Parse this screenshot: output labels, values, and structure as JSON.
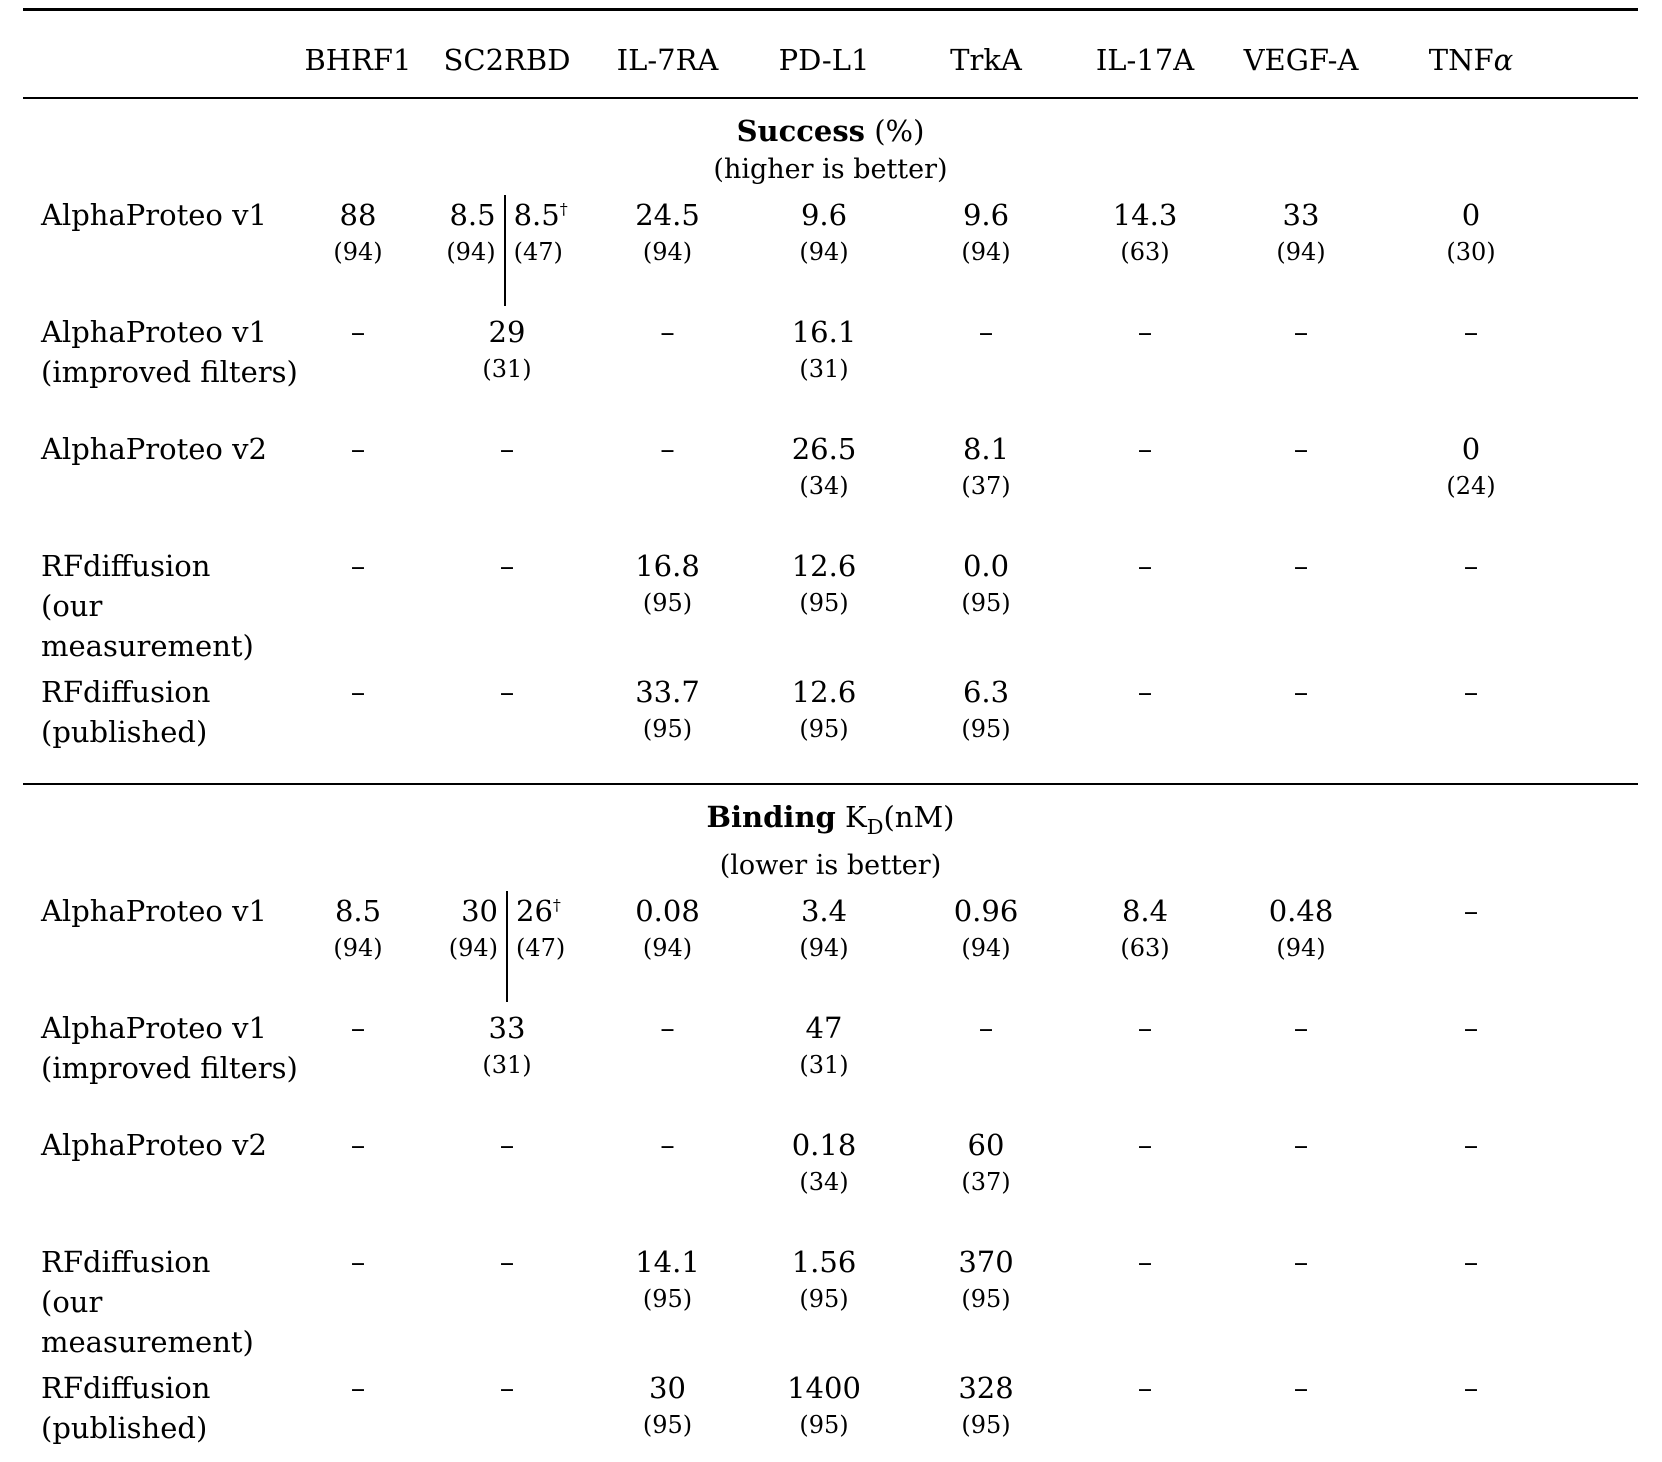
{
  "page": {
    "background": "#ffffff",
    "text_color": "#000000"
  },
  "table": {
    "columns": [
      "BHRF1",
      "SC2RBD",
      "IL-7RA",
      "PD-L1",
      "TrkA",
      "IL-17A",
      "VEGF-A",
      "TNFα"
    ],
    "sections": [
      {
        "id": "success",
        "title": [
          {
            "t": "Success",
            "b": true
          },
          {
            "t": " (%)"
          }
        ],
        "subtitle": "(higher is better)",
        "rows": [
          {
            "label": [
              "AlphaProteo v1"
            ],
            "cells": [
              {
                "v": "88",
                "n": "(94)"
              },
              {
                "split": [
                  {
                    "v": "8.5",
                    "n": "(94)"
                  },
                  {
                    "v": "8.5",
                    "sup": "†",
                    "n": "(47)"
                  }
                ]
              },
              {
                "v": "24.5",
                "n": "(94)"
              },
              {
                "v": "9.6",
                "n": "(94)"
              },
              {
                "v": "9.6",
                "n": "(94)"
              },
              {
                "v": "14.3",
                "n": "(63)"
              },
              {
                "v": "33",
                "n": "(94)"
              },
              {
                "v": "0",
                "n": "(30)"
              }
            ]
          },
          {
            "label": [
              "AlphaProteo v1",
              "(improved filters)"
            ],
            "cells": [
              {
                "v": "–"
              },
              {
                "v": "29",
                "n": "(31)"
              },
              {
                "v": "–"
              },
              {
                "v": "16.1",
                "n": "(31)"
              },
              {
                "v": "–"
              },
              {
                "v": "–"
              },
              {
                "v": "–"
              },
              {
                "v": "–"
              }
            ]
          },
          {
            "label": [
              "AlphaProteo v2"
            ],
            "cells": [
              {
                "v": "–"
              },
              {
                "v": "–"
              },
              {
                "v": "–"
              },
              {
                "v": "26.5",
                "n": "(34)"
              },
              {
                "v": "8.1",
                "n": "(37)"
              },
              {
                "v": "–"
              },
              {
                "v": "–"
              },
              {
                "v": "0",
                "n": "(24)"
              }
            ]
          },
          {
            "label": [
              "RFdiffusion",
              "(our measurement)"
            ],
            "cells": [
              {
                "v": "–"
              },
              {
                "v": "–"
              },
              {
                "v": "16.8",
                "n": "(95)"
              },
              {
                "v": "12.6",
                "n": "(95)"
              },
              {
                "v": "0.0",
                "n": "(95)"
              },
              {
                "v": "–"
              },
              {
                "v": "–"
              },
              {
                "v": "–"
              }
            ]
          },
          {
            "label": [
              "RFdiffusion",
              "(published)"
            ],
            "cells": [
              {
                "v": "–"
              },
              {
                "v": "–"
              },
              {
                "v": "33.7",
                "n": "(95)"
              },
              {
                "v": "12.6",
                "n": "(95)"
              },
              {
                "v": "6.3",
                "n": "(95)"
              },
              {
                "v": "–"
              },
              {
                "v": "–"
              },
              {
                "v": "–"
              }
            ]
          }
        ]
      },
      {
        "id": "binding",
        "title": [
          {
            "t": "Binding",
            "b": true
          },
          {
            "t": " K"
          },
          {
            "t": "D",
            "sub": true
          },
          {
            "t": "(nM)"
          }
        ],
        "subtitle": "(lower is better)",
        "rows": [
          {
            "label": [
              "AlphaProteo v1"
            ],
            "cells": [
              {
                "v": "8.5",
                "n": "(94)"
              },
              {
                "split": [
                  {
                    "v": "30",
                    "n": "(94)"
                  },
                  {
                    "v": "26",
                    "sup": "†",
                    "n": "(47)"
                  }
                ]
              },
              {
                "v": "0.08",
                "n": "(94)"
              },
              {
                "v": "3.4",
                "n": "(94)"
              },
              {
                "v": "0.96",
                "n": "(94)"
              },
              {
                "v": "8.4",
                "n": "(63)"
              },
              {
                "v": "0.48",
                "n": "(94)"
              },
              {
                "v": "–"
              }
            ]
          },
          {
            "label": [
              "AlphaProteo v1",
              "(improved filters)"
            ],
            "cells": [
              {
                "v": "–"
              },
              {
                "v": "33",
                "n": "(31)"
              },
              {
                "v": "–"
              },
              {
                "v": "47",
                "n": "(31)"
              },
              {
                "v": "–"
              },
              {
                "v": "–"
              },
              {
                "v": "–"
              },
              {
                "v": "–"
              }
            ]
          },
          {
            "label": [
              "AlphaProteo v2"
            ],
            "cells": [
              {
                "v": "–"
              },
              {
                "v": "–"
              },
              {
                "v": "–"
              },
              {
                "v": "0.18",
                "n": "(34)"
              },
              {
                "v": "60",
                "n": "(37)"
              },
              {
                "v": "–"
              },
              {
                "v": "–"
              },
              {
                "v": "–"
              }
            ]
          },
          {
            "label": [
              "RFdiffusion",
              "(our measurement)"
            ],
            "cells": [
              {
                "v": "–"
              },
              {
                "v": "–"
              },
              {
                "v": "14.1",
                "n": "(95)"
              },
              {
                "v": "1.56",
                "n": "(95)"
              },
              {
                "v": "370",
                "n": "(95)"
              },
              {
                "v": "–"
              },
              {
                "v": "–"
              },
              {
                "v": "–"
              }
            ]
          },
          {
            "label": [
              "RFdiffusion",
              "(published)"
            ],
            "cells": [
              {
                "v": "–"
              },
              {
                "v": "–"
              },
              {
                "v": "30",
                "n": "(95)"
              },
              {
                "v": "1400",
                "n": "(95)"
              },
              {
                "v": "328",
                "n": "(95)"
              },
              {
                "v": "–"
              },
              {
                "v": "–"
              },
              {
                "v": "–"
              }
            ]
          }
        ]
      }
    ]
  }
}
